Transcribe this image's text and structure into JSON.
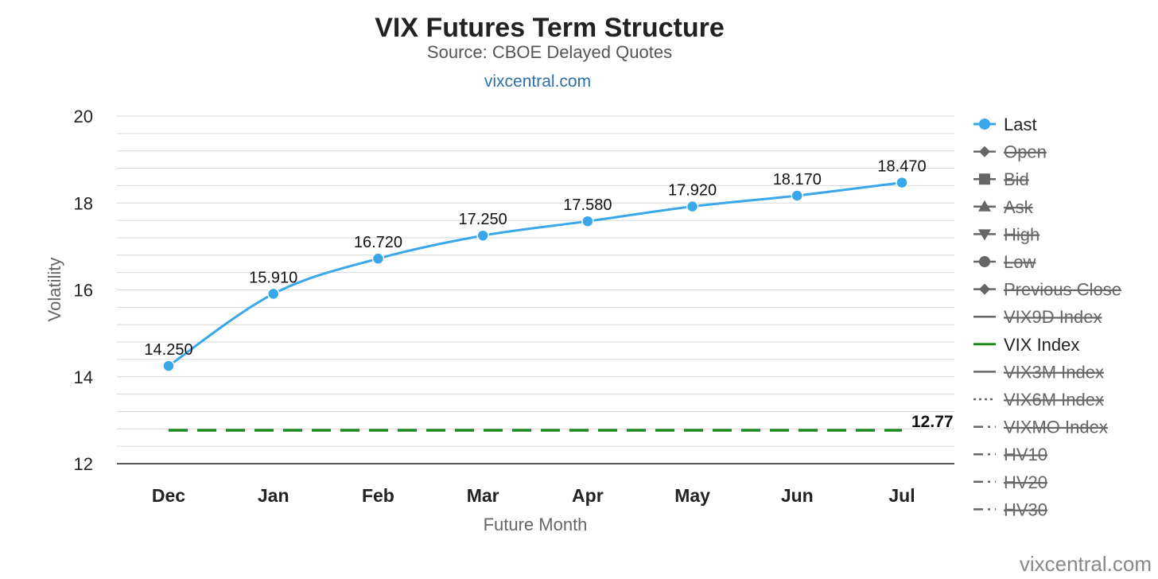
{
  "chart_data": {
    "type": "line",
    "title": "VIX Futures Term Structure",
    "subtitle": "Source: CBOE Delayed Quotes",
    "credit_link": "vixcentral.com",
    "xlabel": "Future Month",
    "ylabel": "Volatility",
    "categories": [
      "Dec",
      "Jan",
      "Feb",
      "Mar",
      "Apr",
      "May",
      "Jun",
      "Jul"
    ],
    "ylim": [
      12,
      20
    ],
    "yticks": [
      "12",
      "14",
      "16",
      "18",
      "20"
    ],
    "grid": true,
    "legend_position": "right",
    "series": [
      {
        "name": "Last",
        "values": [
          14.25,
          15.91,
          16.72,
          17.25,
          17.58,
          17.92,
          18.17,
          18.47
        ],
        "labels": [
          "14.250",
          "15.910",
          "16.720",
          "17.250",
          "17.580",
          "17.920",
          "18.170",
          "18.470"
        ],
        "color": "#3aa7ea"
      },
      {
        "name": "VIX Index",
        "values": [
          12.77,
          12.77,
          12.77,
          12.77,
          12.77,
          12.77,
          12.77,
          12.77
        ],
        "end_label": "12.77",
        "style": "dashed",
        "color": "#1e8a1e"
      }
    ],
    "legend": [
      {
        "label": "Last",
        "symbol": "circle",
        "line": "solid",
        "enabled": true,
        "color": "#3aa7ea"
      },
      {
        "label": "Open",
        "symbol": "diamond",
        "line": "solid",
        "enabled": false
      },
      {
        "label": "Bid",
        "symbol": "square",
        "line": "solid",
        "enabled": false
      },
      {
        "label": "Ask",
        "symbol": "triangle",
        "line": "solid",
        "enabled": false
      },
      {
        "label": "High",
        "symbol": "triangle-down",
        "line": "solid",
        "enabled": false
      },
      {
        "label": "Low",
        "symbol": "circle",
        "line": "solid",
        "enabled": false
      },
      {
        "label": "Previous Close",
        "symbol": "diamond",
        "line": "solid",
        "enabled": false
      },
      {
        "label": "VIX9D Index",
        "symbol": "none",
        "line": "solid",
        "enabled": false
      },
      {
        "label": "VIX Index",
        "symbol": "none",
        "line": "solid",
        "enabled": true,
        "color": "#1e8a1e"
      },
      {
        "label": "VIX3M Index",
        "symbol": "none",
        "line": "solid",
        "enabled": false
      },
      {
        "label": "VIX6M Index",
        "symbol": "none",
        "line": "dotted",
        "enabled": false
      },
      {
        "label": "VIXMO Index",
        "symbol": "none",
        "line": "dashdot",
        "enabled": false
      },
      {
        "label": "HV10",
        "symbol": "none",
        "line": "dashdot",
        "enabled": false
      },
      {
        "label": "HV20",
        "symbol": "none",
        "line": "dashdot",
        "enabled": false
      },
      {
        "label": "HV30",
        "symbol": "none",
        "line": "dashdot",
        "enabled": false
      }
    ],
    "watermark": "vixcentral.com"
  }
}
